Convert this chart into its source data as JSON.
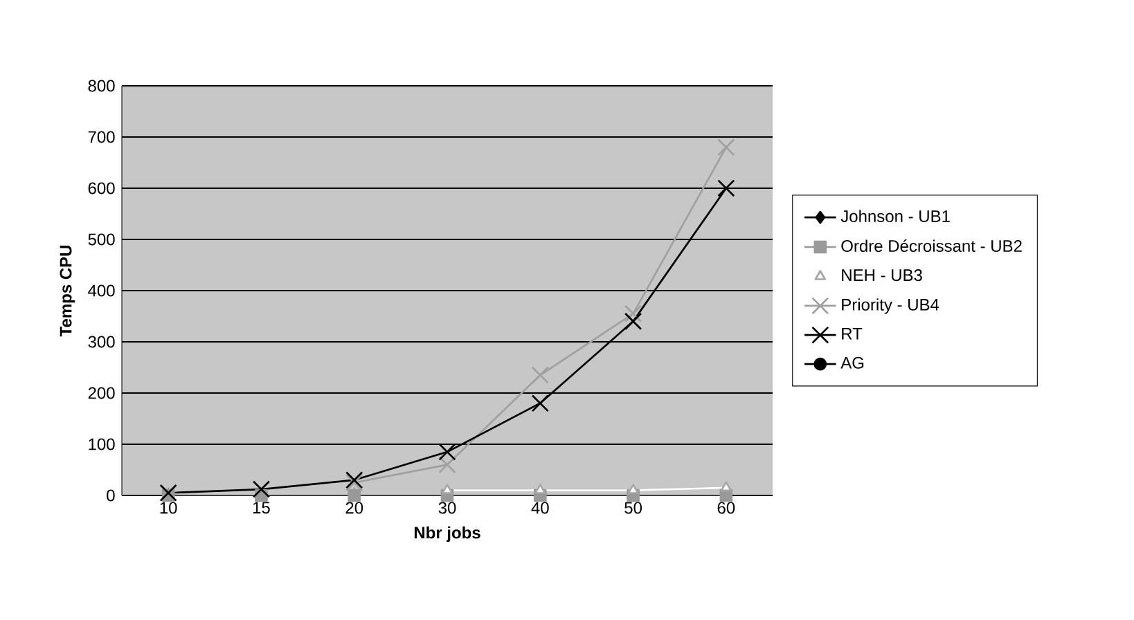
{
  "chart_data": {
    "type": "line",
    "xlabel": "Nbr jobs",
    "ylabel": "Temps CPU",
    "categories": [
      "10",
      "15",
      "20",
      "30",
      "40",
      "50",
      "60"
    ],
    "ylim": [
      0,
      800
    ],
    "yticks": [
      0,
      100,
      200,
      300,
      400,
      500,
      600,
      700,
      800
    ],
    "grid": "y",
    "legend": "right",
    "series": [
      {
        "name": "Johnson - UB1",
        "color": "#000000",
        "marker": "diamond",
        "values": [
          null,
          null,
          null,
          null,
          null,
          null,
          null
        ]
      },
      {
        "name": "Ordre Décroissant - UB2",
        "color": "#999999",
        "marker": "square",
        "values": [
          0,
          0,
          0,
          0,
          0,
          0,
          0
        ]
      },
      {
        "name": "NEH - UB3",
        "color": "#ffffff",
        "marker": "triangle",
        "values": [
          null,
          null,
          null,
          10,
          10,
          10,
          15
        ]
      },
      {
        "name": "Priority - UB4",
        "color": "#a0a0a0",
        "marker": "cross",
        "values": [
          null,
          null,
          25,
          60,
          235,
          355,
          680
        ]
      },
      {
        "name": "RT",
        "color": "#000000",
        "marker": "cross",
        "values": [
          5,
          12,
          30,
          85,
          180,
          340,
          600
        ]
      },
      {
        "name": "AG",
        "color": "#000000",
        "marker": "circle",
        "values": [
          null,
          null,
          null,
          null,
          null,
          null,
          null
        ]
      }
    ]
  }
}
